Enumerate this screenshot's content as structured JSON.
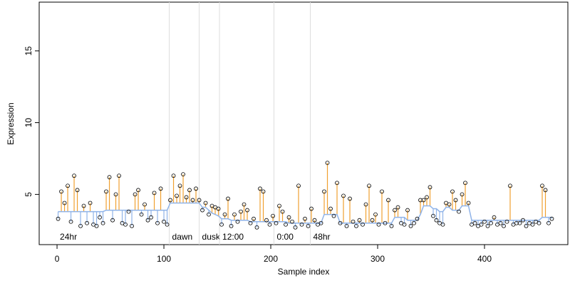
{
  "chart_data": {
    "type": "residual-scatter",
    "x_label": "Sample index",
    "y_label": "Expression",
    "xlim": [
      -16.7,
      478
    ],
    "ylim": [
      1.5,
      18.4
    ],
    "xticks": [
      0,
      100,
      200,
      300,
      400
    ],
    "yticks": [
      5,
      10,
      15
    ],
    "up_color": "#f0a030",
    "down_color": "#8fb3e8",
    "fit_color": "#8fb3e8",
    "point_color": "#000000",
    "annotations": [
      {
        "x": 0,
        "label": "24hr",
        "line": false
      },
      {
        "x": 105,
        "label": "dawn",
        "line": true
      },
      {
        "x": 133,
        "label": "dusk",
        "line": true
      },
      {
        "x": 152,
        "label": "12:00",
        "line": true
      },
      {
        "x": 203,
        "label": "0:00",
        "line": true
      },
      {
        "x": 237,
        "label": "48hr",
        "line": true
      }
    ],
    "x": [
      1,
      4,
      7,
      10,
      13,
      16,
      19,
      22,
      25,
      28,
      31,
      34,
      37,
      40,
      43,
      46,
      49,
      52,
      55,
      58,
      61,
      64,
      67,
      70,
      73,
      76,
      79,
      82,
      85,
      88,
      91,
      94,
      97,
      100,
      103,
      106,
      109,
      112,
      115,
      118,
      121,
      124,
      127,
      130,
      133,
      136,
      139,
      142,
      145,
      148,
      151,
      154,
      157,
      160,
      163,
      166,
      169,
      172,
      175,
      178,
      181,
      184,
      187,
      190,
      193,
      196,
      199,
      202,
      205,
      208,
      211,
      214,
      217,
      220,
      223,
      226,
      229,
      232,
      235,
      238,
      241,
      244,
      247,
      250,
      253,
      256,
      259,
      262,
      265,
      268,
      271,
      274,
      277,
      280,
      283,
      286,
      289,
      292,
      295,
      298,
      301,
      304,
      307,
      310,
      313,
      316,
      319,
      322,
      325,
      328,
      331,
      334,
      337,
      340,
      343,
      346,
      349,
      352,
      355,
      358,
      361,
      364,
      367,
      370,
      373,
      376,
      379,
      382,
      385,
      388,
      391,
      394,
      397,
      400,
      403,
      406,
      409,
      412,
      415,
      418,
      421,
      424,
      427,
      430,
      433,
      436,
      439,
      442,
      445,
      448,
      451,
      454,
      457,
      460,
      463
    ],
    "values": [
      3.3,
      5.2,
      4.4,
      5.6,
      3.1,
      6.3,
      5.3,
      2.8,
      4.2,
      3.0,
      4.4,
      2.9,
      2.8,
      3.4,
      3.0,
      5.2,
      6.2,
      3.2,
      5.0,
      6.3,
      3.0,
      2.9,
      3.8,
      2.8,
      5.0,
      5.3,
      3.6,
      4.3,
      3.2,
      3.4,
      5.1,
      3.0,
      5.4,
      3.1,
      2.9,
      4.6,
      6.3,
      4.9,
      5.6,
      6.4,
      4.8,
      5.3,
      4.6,
      5.4,
      4.6,
      3.9,
      4.4,
      3.6,
      4.2,
      4.1,
      4.0,
      2.9,
      3.6,
      4.7,
      2.8,
      3.6,
      3.1,
      3.8,
      4.3,
      3.9,
      3.0,
      3.3,
      2.7,
      5.4,
      5.2,
      3.2,
      2.9,
      3.5,
      3.0,
      4.2,
      3.8,
      2.9,
      3.4,
      3.1,
      2.7,
      5.6,
      2.9,
      3.3,
      2.8,
      4.0,
      3.2,
      2.9,
      3.0,
      5.2,
      7.2,
      4.0,
      3.5,
      5.8,
      3.0,
      4.9,
      2.8,
      4.7,
      3.1,
      2.8,
      3.2,
      2.9,
      4.3,
      5.6,
      3.2,
      3.6,
      2.9,
      5.2,
      3.0,
      4.6,
      2.8,
      3.9,
      4.1,
      3.0,
      2.9,
      3.9,
      2.8,
      3.0,
      3.3,
      4.6,
      4.6,
      4.8,
      5.5,
      3.5,
      3.2,
      3.0,
      2.9,
      4.4,
      4.3,
      5.2,
      4.6,
      3.8,
      5.0,
      5.8,
      4.4,
      2.9,
      3.0,
      2.8,
      2.9,
      3.1,
      2.8,
      3.0,
      3.4,
      2.9,
      3.0,
      2.8,
      3.1,
      5.6,
      2.9,
      3.0,
      3.0,
      3.2,
      2.8,
      3.0,
      2.9,
      3.1,
      3.0,
      5.6,
      5.3,
      3.0,
      3.3
    ],
    "fitted": [
      3.8,
      3.8,
      3.8,
      3.8,
      3.8,
      3.8,
      3.8,
      3.8,
      3.8,
      3.8,
      3.8,
      3.8,
      3.8,
      3.8,
      3.8,
      3.9,
      3.9,
      3.9,
      3.9,
      3.9,
      3.9,
      3.9,
      3.9,
      3.9,
      3.9,
      3.9,
      3.9,
      3.9,
      3.9,
      3.9,
      3.9,
      3.9,
      3.9,
      3.9,
      3.9,
      4.4,
      4.4,
      4.4,
      4.4,
      4.4,
      4.4,
      4.4,
      4.4,
      4.4,
      4.4,
      4.1,
      4.1,
      3.9,
      3.7,
      3.6,
      3.5,
      3.3,
      3.3,
      3.3,
      3.2,
      3.2,
      3.2,
      3.2,
      3.2,
      3.2,
      3.1,
      3.1,
      3.1,
      3.1,
      3.1,
      3.1,
      3.1,
      3.1,
      3.1,
      3.1,
      3.1,
      3.1,
      3.0,
      3.0,
      3.0,
      3.0,
      3.0,
      3.0,
      3.0,
      3.0,
      3.0,
      3.0,
      3.0,
      3.6,
      3.6,
      3.6,
      3.6,
      3.6,
      3.0,
      3.0,
      3.0,
      3.0,
      3.0,
      3.0,
      3.0,
      3.0,
      3.0,
      3.0,
      3.0,
      3.0,
      3.0,
      3.0,
      3.0,
      3.0,
      3.0,
      3.4,
      3.4,
      3.4,
      3.4,
      3.2,
      3.2,
      3.2,
      3.2,
      3.6,
      4.2,
      4.2,
      4.2,
      4.0,
      4.0,
      3.8,
      3.8,
      4.1,
      4.1,
      3.9,
      3.9,
      3.9,
      4.2,
      4.2,
      4.2,
      3.2,
      3.2,
      3.2,
      3.2,
      3.2,
      3.2,
      3.2,
      3.2,
      3.2,
      3.2,
      3.2,
      3.2,
      3.2,
      3.2,
      3.2,
      3.2,
      3.2,
      3.2,
      3.2,
      3.2,
      3.2,
      3.2,
      3.4,
      3.4,
      3.4,
      3.4
    ]
  }
}
